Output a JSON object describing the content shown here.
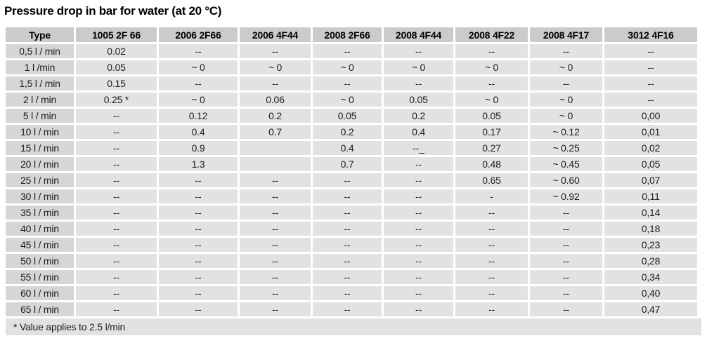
{
  "title": "Pressure drop in bar for water (at 20 °C)",
  "footnote": "* Value applies to 2.5 l/min",
  "colors": {
    "header_bg": "#c9cbcd",
    "row_label_bg": "#d4d6d8",
    "cell_bg": "#e1e2e4",
    "grid_gap": "#ffffff",
    "text": "#1c1c1c"
  },
  "table": {
    "columns": [
      "Type",
      "1005 2F 66",
      "2006 2F66",
      "2006 4F44",
      "2008 2F66",
      "2008 4F44",
      "2008 4F22",
      "2008 4F17",
      "3012 4F16"
    ],
    "rows": [
      {
        "label": "0,5 l / min",
        "values": [
          "0.02",
          "--",
          "--",
          "--",
          "--",
          "--",
          "--",
          "--"
        ]
      },
      {
        "label": "1 l /min",
        "values": [
          "0.05",
          "~ 0",
          "~ 0",
          "~ 0",
          "~ 0",
          "~ 0",
          "~ 0",
          "--"
        ]
      },
      {
        "label": "1,5 l / min",
        "values": [
          "0.15",
          "--",
          "--",
          "--",
          "--",
          "--",
          "--",
          "--"
        ]
      },
      {
        "label": "2 l / min",
        "values": [
          "0.25 *",
          "~ 0",
          "0.06",
          "~ 0",
          "0.05",
          "~ 0",
          "~ 0",
          "--"
        ]
      },
      {
        "label": "5 l / min",
        "values": [
          "--",
          "0.12",
          "0.2",
          "0.05",
          "0.2",
          "0.05",
          "~ 0",
          "0,00"
        ]
      },
      {
        "label": "10 l / min",
        "values": [
          "--",
          "0.4",
          "0.7",
          "0.2",
          "0.4",
          "0.17",
          "~ 0.12",
          "0,01"
        ]
      },
      {
        "label": "15 l / min",
        "values": [
          "--",
          "0.9",
          "",
          "0.4",
          "--_",
          "0.27",
          "~ 0.25",
          "0,02"
        ]
      },
      {
        "label": "20 l / min",
        "values": [
          "--",
          "1.3",
          "",
          "0.7",
          "--",
          "0.48",
          "~ 0.45",
          "0,05"
        ]
      },
      {
        "label": "25 l / min",
        "values": [
          "--",
          "--",
          "--",
          "--",
          "--",
          "0.65",
          "~ 0.60",
          "0,07"
        ]
      },
      {
        "label": "30 l / min",
        "values": [
          "--",
          "--",
          "--",
          "--",
          "--",
          "-",
          "~ 0.92",
          "0,11"
        ]
      },
      {
        "label": "35 l / min",
        "values": [
          "--",
          "--",
          "--",
          "--",
          "--",
          "--",
          "--",
          "0,14"
        ]
      },
      {
        "label": "40 l / min",
        "values": [
          "--",
          "--",
          "--",
          "--",
          "--",
          "--",
          "--",
          "0,18"
        ]
      },
      {
        "label": "45 l / min",
        "values": [
          "--",
          "--",
          "--",
          "--",
          "--",
          "--",
          "--",
          "0,23"
        ]
      },
      {
        "label": "50 l / min",
        "values": [
          "--",
          "--",
          "--",
          "--",
          "--",
          "--",
          "--",
          "0,28"
        ]
      },
      {
        "label": "55 l / min",
        "values": [
          "--",
          "--",
          "--",
          "--",
          "--",
          "--",
          "--",
          "0,34"
        ]
      },
      {
        "label": "60 l / min",
        "values": [
          "--",
          "--",
          "--",
          "--",
          "--",
          "--",
          "--",
          "0,40"
        ]
      },
      {
        "label": "65 l / min",
        "values": [
          "--",
          "--",
          "--",
          "--",
          "--",
          "--",
          "--",
          "0,47"
        ]
      }
    ]
  }
}
